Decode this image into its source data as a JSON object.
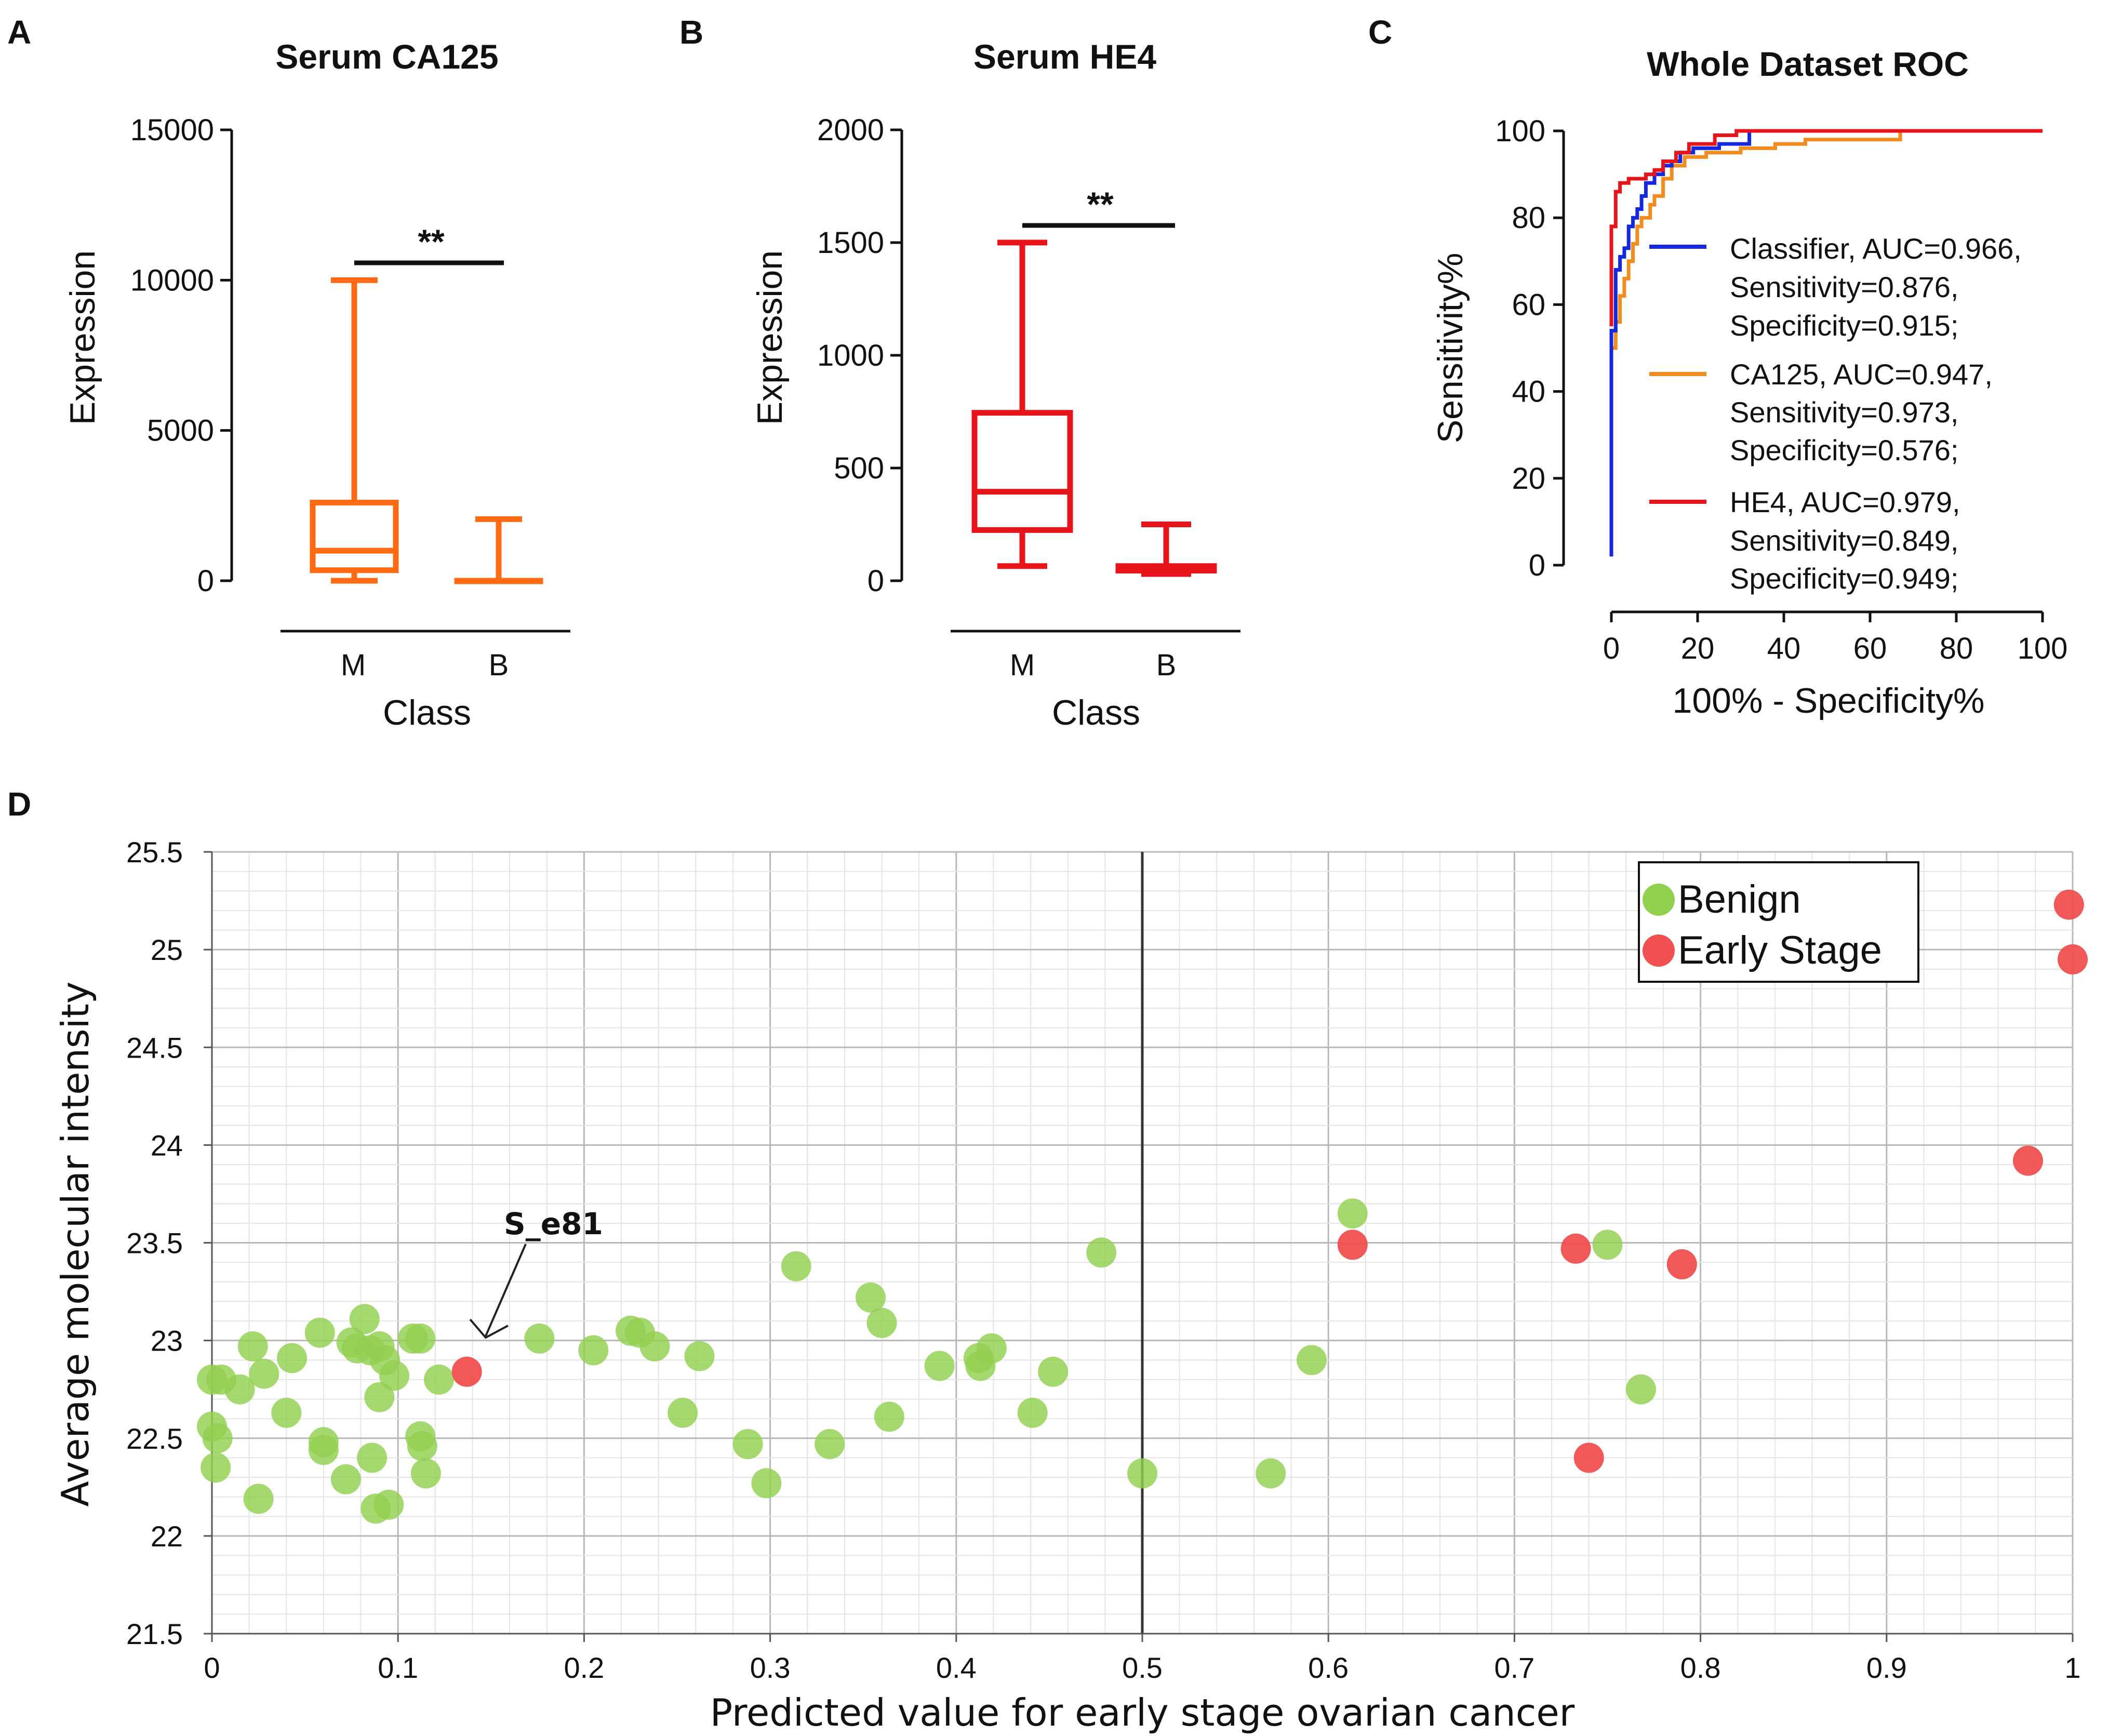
{
  "chart_data": [
    {
      "panel": "A",
      "type": "boxplot",
      "title": "Serum CA125",
      "xlabel": "Class",
      "ylabel": "Expression",
      "ylim": [
        0,
        15000
      ],
      "yticks": [
        0,
        5000,
        10000,
        15000
      ],
      "categories": [
        "M",
        "B"
      ],
      "color": "#FF6A13",
      "boxes": [
        {
          "class": "M",
          "min": 0,
          "q1": 350,
          "median": 1000,
          "q3": 2600,
          "max": 10000
        },
        {
          "class": "B",
          "min": 0,
          "q1": 0,
          "median": 0,
          "q3": 0,
          "max": 2050
        }
      ],
      "significance": "**"
    },
    {
      "panel": "B",
      "type": "boxplot",
      "title": "Serum HE4",
      "xlabel": "Class",
      "ylabel": "Expression",
      "ylim": [
        0,
        2000
      ],
      "yticks": [
        0,
        500,
        1000,
        1500,
        2000
      ],
      "categories": [
        "M",
        "B"
      ],
      "color": "#E8141B",
      "boxes": [
        {
          "class": "M",
          "min": 65,
          "q1": 225,
          "median": 395,
          "q3": 745,
          "max": 1500
        },
        {
          "class": "B",
          "min": 30,
          "q1": 45,
          "median": 55,
          "q3": 65,
          "max": 250
        }
      ],
      "significance": "**"
    },
    {
      "panel": "C",
      "type": "line",
      "title": "Whole Dataset ROC",
      "xlabel": "100% - Specificity%",
      "ylabel": "Sensitivity%",
      "xlim": [
        0,
        100
      ],
      "ylim": [
        0,
        100
      ],
      "xticks": [
        0,
        20,
        40,
        60,
        80,
        100
      ],
      "yticks": [
        0,
        20,
        40,
        60,
        80,
        100
      ],
      "series": [
        {
          "name": "Classifier",
          "legend": [
            "Classifier, AUC=0.966,",
            "Sensitivity=0.876,",
            "Specificity=0.915;"
          ],
          "color": "#1428E0",
          "points": [
            [
              0,
              2
            ],
            [
              0,
              54
            ],
            [
              1,
              54
            ],
            [
              1,
              68
            ],
            [
              2,
              68
            ],
            [
              2,
              71
            ],
            [
              3,
              71
            ],
            [
              3,
              73
            ],
            [
              4,
              73
            ],
            [
              4,
              78
            ],
            [
              5,
              78
            ],
            [
              5,
              80
            ],
            [
              6,
              80
            ],
            [
              6,
              82
            ],
            [
              7,
              82
            ],
            [
              7,
              85
            ],
            [
              8,
              85
            ],
            [
              8,
              88
            ],
            [
              10,
              88
            ],
            [
              10,
              90
            ],
            [
              12,
              90
            ],
            [
              12,
              92
            ],
            [
              14,
              92
            ],
            [
              14,
              93
            ],
            [
              16,
              93
            ],
            [
              16,
              95
            ],
            [
              19,
              95
            ],
            [
              19,
              96
            ],
            [
              25,
              96
            ],
            [
              25,
              97
            ],
            [
              32,
              97
            ],
            [
              32,
              100
            ],
            [
              100,
              100
            ]
          ]
        },
        {
          "name": "CA125",
          "legend": [
            "CA125, AUC=0.947,",
            "Sensitivity=0.973,",
            "Specificity=0.576;"
          ],
          "color": "#F28C1F",
          "points": [
            [
              0,
              50
            ],
            [
              1,
              50
            ],
            [
              1,
              56
            ],
            [
              2,
              56
            ],
            [
              2,
              62
            ],
            [
              3,
              62
            ],
            [
              3,
              66
            ],
            [
              4,
              66
            ],
            [
              4,
              70
            ],
            [
              5,
              70
            ],
            [
              5,
              74
            ],
            [
              6,
              74
            ],
            [
              6,
              78
            ],
            [
              7,
              78
            ],
            [
              7,
              80
            ],
            [
              9,
              80
            ],
            [
              9,
              83
            ],
            [
              10,
              83
            ],
            [
              10,
              85
            ],
            [
              12,
              85
            ],
            [
              12,
              89
            ],
            [
              14,
              89
            ],
            [
              14,
              92
            ],
            [
              17,
              92
            ],
            [
              17,
              94
            ],
            [
              22,
              94
            ],
            [
              22,
              95
            ],
            [
              30,
              95
            ],
            [
              30,
              96
            ],
            [
              38,
              96
            ],
            [
              38,
              97
            ],
            [
              45,
              97
            ],
            [
              45,
              98
            ],
            [
              67,
              98
            ],
            [
              67,
              100
            ],
            [
              100,
              100
            ]
          ]
        },
        {
          "name": "HE4",
          "legend": [
            "HE4, AUC=0.979,",
            "Sensitivity=0.849,",
            "Specificity=0.949;"
          ],
          "color": "#E8141B",
          "points": [
            [
              0,
              55
            ],
            [
              0,
              78
            ],
            [
              1,
              78
            ],
            [
              1,
              86
            ],
            [
              2,
              86
            ],
            [
              2,
              88
            ],
            [
              4,
              88
            ],
            [
              4,
              89
            ],
            [
              8,
              89
            ],
            [
              8,
              90
            ],
            [
              10,
              90
            ],
            [
              10,
              91
            ],
            [
              12,
              91
            ],
            [
              12,
              93
            ],
            [
              15,
              93
            ],
            [
              15,
              95
            ],
            [
              18,
              95
            ],
            [
              18,
              97
            ],
            [
              24,
              97
            ],
            [
              24,
              99
            ],
            [
              29,
              99
            ],
            [
              29,
              100
            ],
            [
              100,
              100
            ]
          ]
        }
      ]
    },
    {
      "panel": "D",
      "type": "scatter",
      "xlabel": "Predicted value for early stage ovarian cancer",
      "ylabel": "Average molecular intensity",
      "xlim": [
        0,
        1
      ],
      "ylim": [
        21.5,
        25.5
      ],
      "xticks": [
        0,
        0.1,
        0.2,
        0.3,
        0.4,
        0.5,
        0.6,
        0.7,
        0.8,
        0.9,
        1
      ],
      "yticks": [
        21.5,
        22,
        22.5,
        23,
        23.5,
        24,
        24.5,
        25,
        25.5
      ],
      "threshold_x": 0.5,
      "annotation": {
        "text": "S_e81",
        "x": 0.137,
        "y": 22.84
      },
      "series": [
        {
          "name": "Benign",
          "color": "#92D050",
          "points": [
            [
              0.0,
              22.8
            ],
            [
              0.005,
              22.8
            ],
            [
              0.0,
              22.56
            ],
            [
              0.003,
              22.5
            ],
            [
              0.002,
              22.35
            ],
            [
              0.015,
              22.75
            ],
            [
              0.022,
              22.97
            ],
            [
              0.028,
              22.83
            ],
            [
              0.025,
              22.19
            ],
            [
              0.04,
              22.63
            ],
            [
              0.043,
              22.91
            ],
            [
              0.058,
              23.04
            ],
            [
              0.06,
              22.48
            ],
            [
              0.06,
              22.44
            ],
            [
              0.072,
              22.29
            ],
            [
              0.075,
              22.99
            ],
            [
              0.078,
              22.96
            ],
            [
              0.082,
              23.11
            ],
            [
              0.085,
              22.95
            ],
            [
              0.086,
              22.4
            ],
            [
              0.088,
              22.14
            ],
            [
              0.09,
              22.71
            ],
            [
              0.09,
              22.97
            ],
            [
              0.093,
              22.9
            ],
            [
              0.095,
              22.16
            ],
            [
              0.098,
              22.82
            ],
            [
              0.108,
              23.01
            ],
            [
              0.112,
              23.01
            ],
            [
              0.112,
              22.51
            ],
            [
              0.113,
              22.46
            ],
            [
              0.115,
              22.32
            ],
            [
              0.122,
              22.8
            ],
            [
              0.176,
              23.01
            ],
            [
              0.205,
              22.95
            ],
            [
              0.225,
              23.05
            ],
            [
              0.23,
              23.04
            ],
            [
              0.238,
              22.97
            ],
            [
              0.253,
              22.63
            ],
            [
              0.262,
              22.92
            ],
            [
              0.288,
              22.47
            ],
            [
              0.298,
              22.27
            ],
            [
              0.314,
              23.38
            ],
            [
              0.332,
              22.47
            ],
            [
              0.354,
              23.22
            ],
            [
              0.36,
              23.09
            ],
            [
              0.364,
              22.61
            ],
            [
              0.391,
              22.87
            ],
            [
              0.412,
              22.91
            ],
            [
              0.413,
              22.87
            ],
            [
              0.419,
              22.96
            ],
            [
              0.441,
              22.63
            ],
            [
              0.452,
              22.84
            ],
            [
              0.478,
              23.45
            ],
            [
              0.5,
              22.32
            ],
            [
              0.569,
              22.32
            ],
            [
              0.591,
              22.9
            ],
            [
              0.613,
              23.65
            ],
            [
              0.75,
              23.49
            ],
            [
              0.768,
              22.75
            ]
          ]
        },
        {
          "name": "Early Stage",
          "color": "#F05050",
          "points": [
            [
              0.137,
              22.84
            ],
            [
              0.613,
              23.49
            ],
            [
              0.733,
              23.47
            ],
            [
              0.74,
              22.4
            ],
            [
              0.79,
              23.39
            ],
            [
              0.976,
              23.92
            ],
            [
              0.998,
              25.23
            ],
            [
              1.0,
              24.95
            ]
          ]
        }
      ]
    }
  ]
}
